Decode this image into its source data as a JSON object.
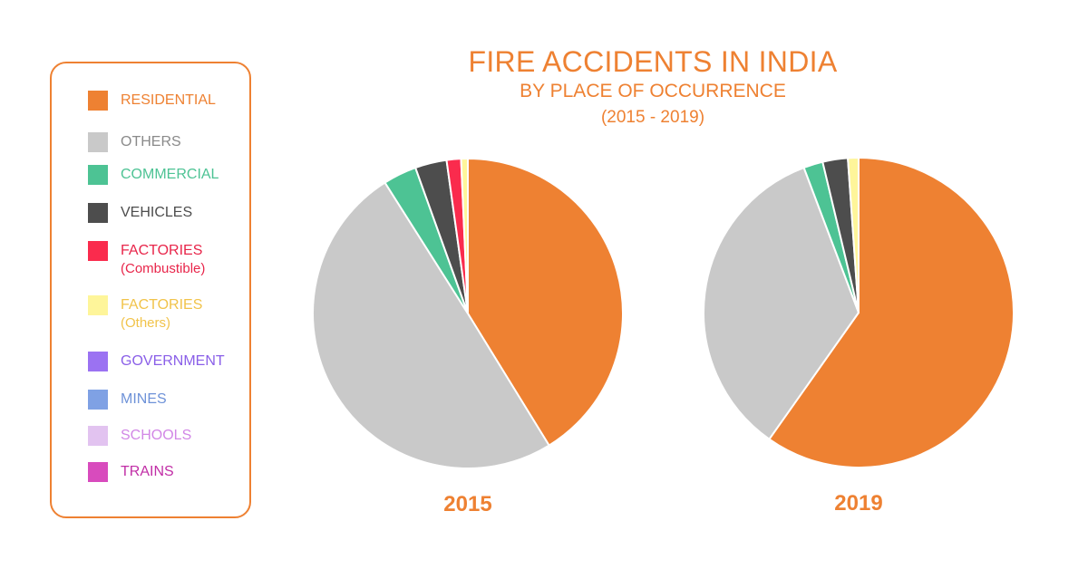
{
  "title": "FIRE ACCIDENTS IN INDIA",
  "subtitle": "BY PLACE OF OCCURRENCE",
  "range": "(2015 - 2019)",
  "legend": [
    {
      "label": "RESIDENTIAL",
      "sub": "",
      "color": "#ee8132",
      "text_color": "#ee8132"
    },
    {
      "label": "OTHERS",
      "sub": "",
      "color": "#c9c9c9",
      "text_color": "#8a8a8a"
    },
    {
      "label": "COMMERCIAL",
      "sub": "",
      "color": "#4dc394",
      "text_color": "#4dc394"
    },
    {
      "label": "VEHICLES",
      "sub": "",
      "color": "#4d4d4d",
      "text_color": "#4d4d4d"
    },
    {
      "label": "FACTORIES",
      "sub": "(Combustible)",
      "color": "#fa2b4d",
      "text_color": "#e8254a"
    },
    {
      "label": "FACTORIES",
      "sub": "(Others)",
      "color": "#fef59a",
      "text_color": "#f1c34a"
    },
    {
      "label": "GOVERNMENT",
      "sub": "",
      "color": "#9b72f2",
      "text_color": "#8a5fe8"
    },
    {
      "label": "MINES",
      "sub": "",
      "color": "#7fa1e4",
      "text_color": "#6e92d8"
    },
    {
      "label": "SCHOOLS",
      "sub": "",
      "color": "#e2c3f0",
      "text_color": "#d287e6"
    },
    {
      "label": "TRAINS",
      "sub": "",
      "color": "#d84bbd",
      "text_color": "#c12ea6"
    }
  ],
  "chart_data": [
    {
      "type": "pie",
      "title": "2015",
      "slices": [
        {
          "name": "RESIDENTIAL",
          "value": 41.3,
          "color": "#ee8132"
        },
        {
          "name": "OTHERS",
          "value": 49.9,
          "color": "#c9c9c9"
        },
        {
          "name": "COMMERCIAL",
          "value": 3.5,
          "color": "#4dc394"
        },
        {
          "name": "VEHICLES",
          "value": 3.3,
          "color": "#4d4d4d"
        },
        {
          "name": "FACTORIES (Combustible)",
          "value": 1.5,
          "color": "#fa2b4d"
        },
        {
          "name": "FACTORIES (Others)",
          "value": 0.7,
          "color": "#fef59a"
        }
      ]
    },
    {
      "type": "pie",
      "title": "2019",
      "slices": [
        {
          "name": "RESIDENTIAL",
          "value": 59.3,
          "color": "#ee8132"
        },
        {
          "name": "OTHERS",
          "value": 34.2,
          "color": "#c9c9c9"
        },
        {
          "name": "COMMERCIAL",
          "value": 2.0,
          "color": "#4dc394"
        },
        {
          "name": "VEHICLES",
          "value": 2.6,
          "color": "#4d4d4d"
        },
        {
          "name": "FACTORIES (Others)",
          "value": 1.1,
          "color": "#fef59a"
        }
      ]
    }
  ]
}
